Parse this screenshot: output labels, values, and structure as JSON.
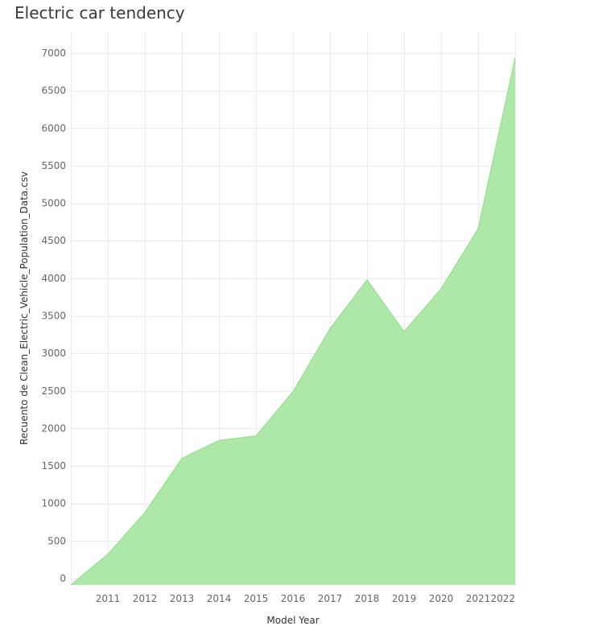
{
  "title": "Electric car tendency",
  "chart_data": {
    "type": "area",
    "title": "Electric car tendency",
    "xlabel": "Model Year",
    "ylabel": "Recuento de Clean_Electric_Vehicle_Population_Data.csv",
    "x": [
      2010,
      2011,
      2012,
      2013,
      2014,
      2015,
      2016,
      2017,
      2018,
      2019,
      2020,
      2021,
      2022
    ],
    "x_tick_labels": [
      "2011",
      "2012",
      "2013",
      "2014",
      "2015",
      "2016",
      "2017",
      "2018",
      "2019",
      "2020",
      "2021",
      "2022"
    ],
    "series": [
      {
        "values": [
          0,
          325,
          880,
          1600,
          1840,
          1900,
          2490,
          3330,
          3980,
          3290,
          3860,
          4660,
          6940
        ]
      }
    ],
    "y_ticks": [
      0,
      500,
      1000,
      1500,
      2000,
      2500,
      3000,
      3500,
      4000,
      4500,
      5000,
      5500,
      6000,
      6500,
      7000
    ],
    "ylim": [
      0,
      7300
    ],
    "grid": true,
    "colors": {
      "fill": "#ade8a9",
      "stroke": "#93d98f",
      "grid": "#ececec"
    }
  }
}
